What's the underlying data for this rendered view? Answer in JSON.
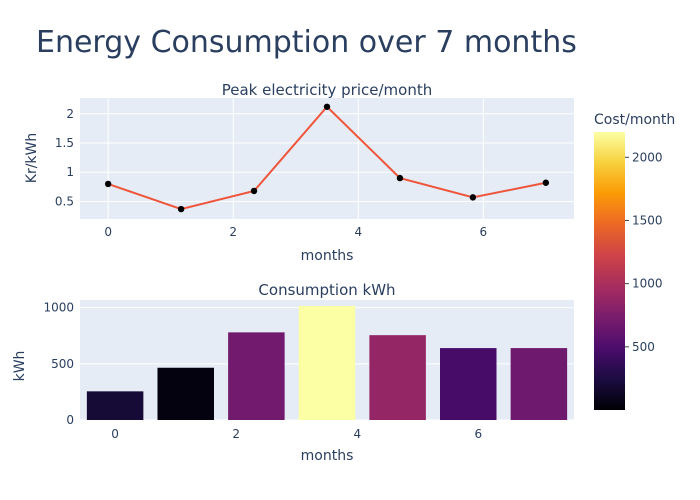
{
  "page": {
    "title": "Energy Consumption over 7 months",
    "colorbar": {
      "title": "Cost/month",
      "ticks": [
        "500",
        "1000",
        "1500",
        "2000"
      ],
      "tick_values": [
        500,
        1000,
        1500,
        2000
      ],
      "range": [
        0,
        2200
      ]
    }
  },
  "chart_data": [
    {
      "type": "line",
      "title": "Peak electricity price/month",
      "xlabel": "months",
      "ylabel": "Kr/kWh",
      "x": [
        0,
        1.1667,
        2.3333,
        3.5,
        4.6667,
        5.8333,
        7
      ],
      "y": [
        0.8,
        0.37,
        0.68,
        2.12,
        0.9,
        0.57,
        0.82
      ],
      "xlim": [
        -0.45,
        7.45
      ],
      "ylim": [
        0.2,
        2.27
      ],
      "x_ticks": [
        "0",
        "2",
        "4",
        "6"
      ],
      "x_tick_values": [
        0,
        2,
        4,
        6
      ],
      "y_ticks": [
        "0.5",
        "1",
        "1.5",
        "2"
      ],
      "y_tick_values": [
        0.5,
        1,
        1.5,
        2
      ],
      "line_color": "#ef553b",
      "marker_color": "#000000",
      "grid": true
    },
    {
      "type": "bar",
      "title": "Consumption kWh",
      "xlabel": "months",
      "ylabel": "kWh",
      "x": [
        0,
        1.1667,
        2.3333,
        3.5,
        4.6667,
        5.8333,
        7
      ],
      "values": [
        255,
        465,
        780,
        1015,
        755,
        640,
        640
      ],
      "cost": [
        200,
        40,
        700,
        2200,
        890,
        470,
        680
      ],
      "xlim": [
        -0.58,
        7.58
      ],
      "ylim": [
        0,
        1068
      ],
      "x_ticks": [
        "0",
        "2",
        "4",
        "6"
      ],
      "x_tick_values": [
        0,
        2,
        4,
        6
      ],
      "y_ticks": [
        "0",
        "500",
        "1000"
      ],
      "y_tick_values": [
        0,
        500,
        1000
      ],
      "grid": true
    }
  ]
}
